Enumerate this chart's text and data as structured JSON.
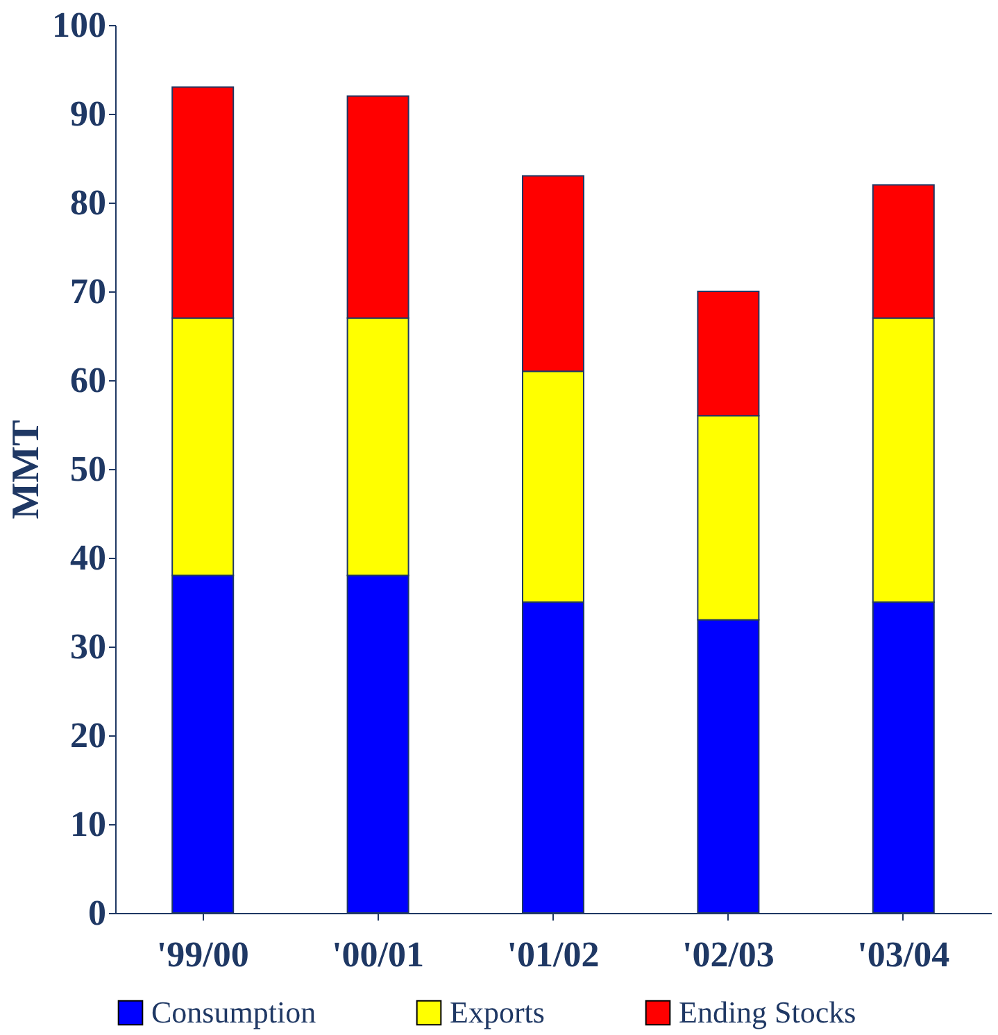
{
  "chart_data": {
    "type": "bar",
    "stacked": true,
    "ylabel": "MMT",
    "categories": [
      "'99/00",
      "'00/01",
      "'01/02",
      "'02/03",
      "'03/04"
    ],
    "series": [
      {
        "name": "Consumption",
        "color": "#0000ff",
        "values": [
          38,
          38,
          35,
          33,
          35
        ]
      },
      {
        "name": "Exports",
        "color": "#ffff00",
        "values": [
          29,
          29,
          26,
          23,
          32
        ]
      },
      {
        "name": "Ending Stocks",
        "color": "#ff0000",
        "values": [
          26,
          25,
          22,
          14,
          15
        ]
      }
    ],
    "ylim": [
      0,
      100
    ],
    "yticks": [
      0,
      10,
      20,
      30,
      40,
      50,
      60,
      70,
      80,
      90,
      100
    ],
    "grid": false,
    "legend": "bottom"
  }
}
